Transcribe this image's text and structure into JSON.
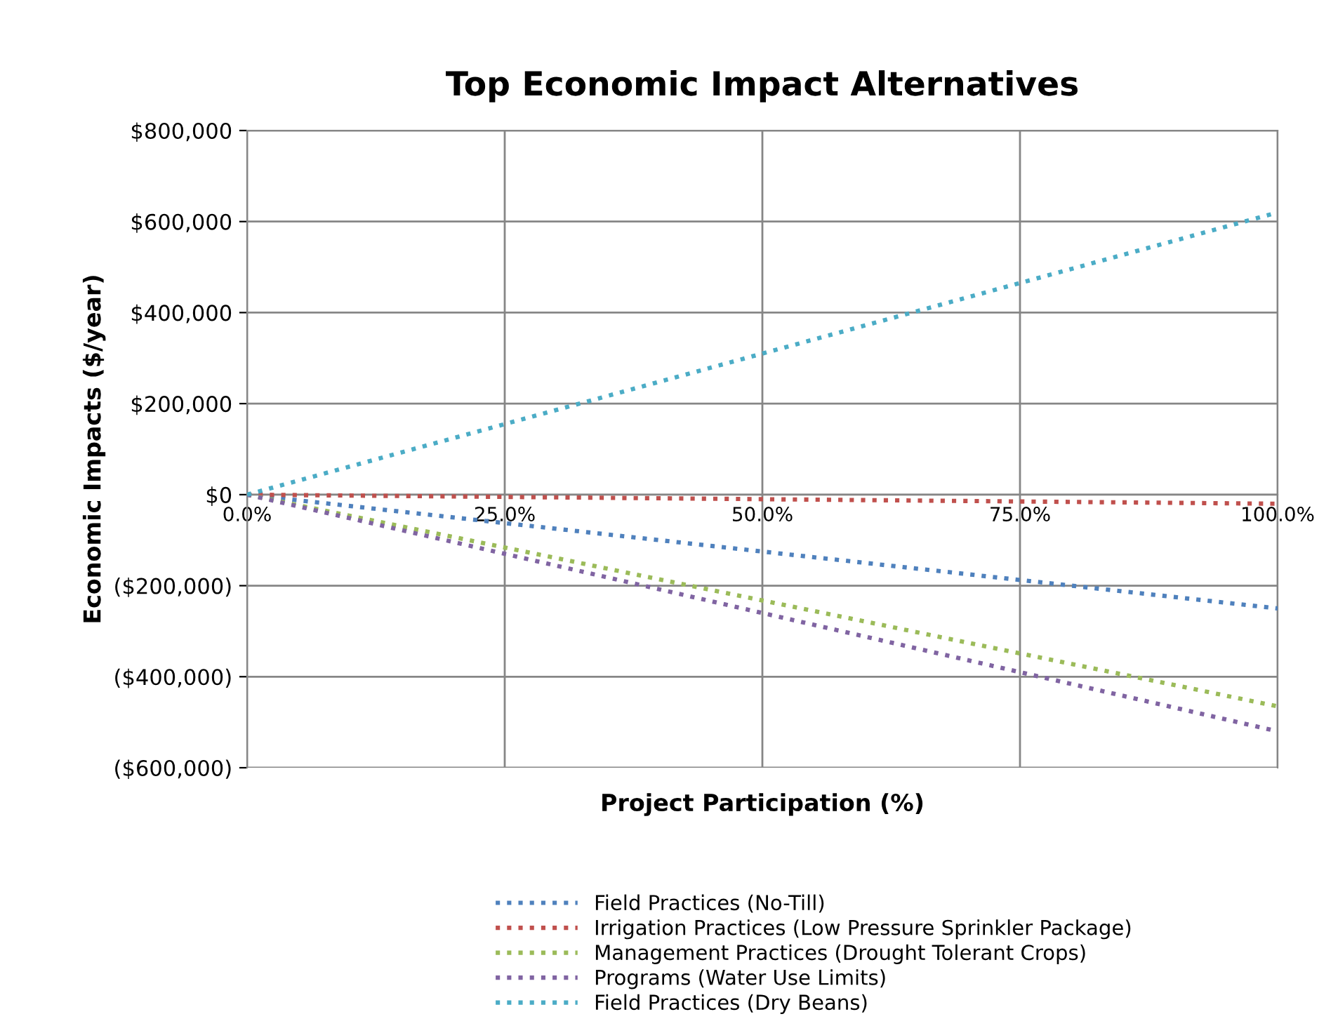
{
  "chart_data": {
    "type": "line",
    "title": "Top Economic Impact Alternatives",
    "xlabel": "Project Participation (%)",
    "ylabel": "Economic Impacts ($/year)",
    "x": [
      0,
      100
    ],
    "series": [
      {
        "name": "Field Practices (No-Till)",
        "color": "#4f81bd",
        "values": [
          0,
          -250000
        ]
      },
      {
        "name": "Irrigation Practices (Low Pressure Sprinkler Package)",
        "color": "#c0504d",
        "values": [
          0,
          -20000
        ]
      },
      {
        "name": "Management Practices (Drought Tolerant Crops)",
        "color": "#9bbb59",
        "values": [
          0,
          -465000
        ]
      },
      {
        "name": "Programs (Water Use Limits)",
        "color": "#8064a2",
        "values": [
          0,
          -520000
        ]
      },
      {
        "name": "Field Practices (Dry Beans)",
        "color": "#4bacc6",
        "values": [
          0,
          620000
        ]
      }
    ],
    "xlim": [
      0,
      100
    ],
    "xticks": [
      {
        "value": 0,
        "label": "0.0%"
      },
      {
        "value": 25,
        "label": "25.0%"
      },
      {
        "value": 50,
        "label": "50.0%"
      },
      {
        "value": 75,
        "label": "75.0%"
      },
      {
        "value": 100,
        "label": "100.0%"
      }
    ],
    "ylim": [
      -600000,
      800000
    ],
    "yticks": [
      {
        "value": -600000,
        "label": "($600,000)"
      },
      {
        "value": -400000,
        "label": "($400,000)"
      },
      {
        "value": -200000,
        "label": "($200,000)"
      },
      {
        "value": 0,
        "label": "$0"
      },
      {
        "value": 200000,
        "label": "$200,000"
      },
      {
        "value": 400000,
        "label": "$400,000"
      },
      {
        "value": 600000,
        "label": "$600,000"
      },
      {
        "value": 800000,
        "label": "$800,000"
      }
    ],
    "grid": true,
    "legend": "bottom",
    "line_style": "dotted",
    "marker": "none"
  }
}
